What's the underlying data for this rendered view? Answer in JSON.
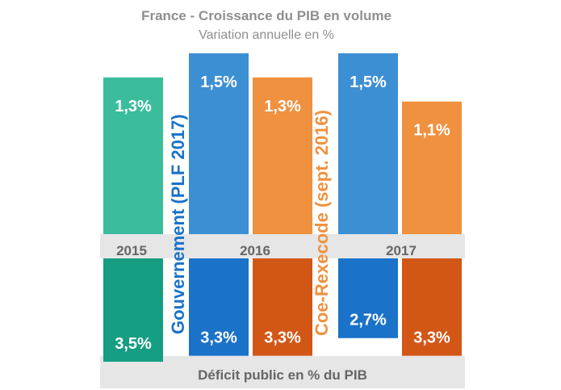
{
  "chart_data": {
    "type": "bar",
    "title": "France - Croissance du PIB en volume",
    "subtitle": "Variation annuelle en %",
    "categories": [
      "2015",
      "2016",
      "2017"
    ],
    "top_panel": {
      "bars": [
        {
          "year": "2015",
          "series": "",
          "value": 1.3,
          "label": "1,3%",
          "color": "#3bbd9c"
        },
        {
          "year": "2016",
          "series": "Gouvernement (PLF 2017)",
          "value": 1.5,
          "label": "1,5%",
          "color": "#3d8fd4"
        },
        {
          "year": "2016",
          "series": "Coe-Rexecode (sept. 2016)",
          "value": 1.3,
          "label": "1,3%",
          "color": "#f0913f"
        },
        {
          "year": "2017",
          "series": "Gouvernement (PLF 2017)",
          "value": 1.5,
          "label": "1,5%",
          "color": "#3d8fd4"
        },
        {
          "year": "2017",
          "series": "Coe-Rexecode (sept. 2016)",
          "value": 1.1,
          "label": "1,1%",
          "color": "#f0913f"
        }
      ]
    },
    "bottom_panel": {
      "title": "Déficit public en % du PIB",
      "bars": [
        {
          "year": "2015",
          "series": "",
          "value": 3.5,
          "label": "3,5%",
          "color": "#169e82"
        },
        {
          "year": "2016",
          "series": "Gouvernement (PLF 2017)",
          "value": 3.3,
          "label": "3,3%",
          "color": "#1a72c9"
        },
        {
          "year": "2016",
          "series": "Coe-Rexecode (sept. 2016)",
          "value": 3.3,
          "label": "3,3%",
          "color": "#d25716"
        },
        {
          "year": "2017",
          "series": "Gouvernement (PLF 2017)",
          "value": 2.7,
          "label": "2,7%",
          "color": "#1a72c9"
        },
        {
          "year": "2017",
          "series": "Coe-Rexecode (sept. 2016)",
          "value": 3.3,
          "label": "3,3%",
          "color": "#d25716"
        }
      ]
    },
    "series": [
      {
        "name": "Gouvernement (PLF 2017)",
        "color": "#1a72c9"
      },
      {
        "name": "Coe-Rexecode (sept. 2016)",
        "color": "#f0913f"
      }
    ],
    "band_color": "#e6e6e6"
  }
}
